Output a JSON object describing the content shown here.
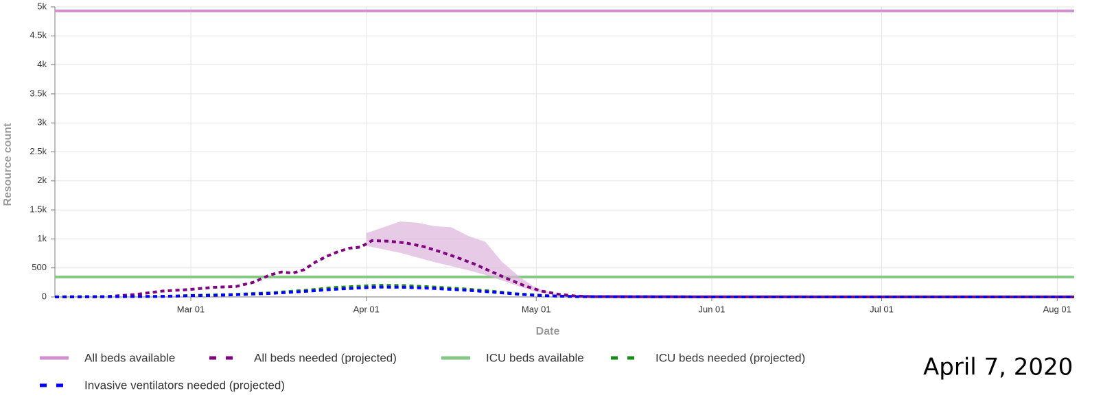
{
  "chart_data": {
    "type": "line",
    "xlabel": "Date",
    "ylabel": "Resource count",
    "annotation": "April 7, 2020",
    "xlim": [
      "02-06",
      "08-04"
    ],
    "xticks": [
      {
        "value": "03-01",
        "label": "Mar 01"
      },
      {
        "value": "04-01",
        "label": "Apr 01"
      },
      {
        "value": "05-01",
        "label": "May 01"
      },
      {
        "value": "06-01",
        "label": "Jun 01"
      },
      {
        "value": "07-01",
        "label": "Jul 01"
      },
      {
        "value": "08-01",
        "label": "Aug 01"
      }
    ],
    "ylim": [
      0,
      5000
    ],
    "yticks": [
      0,
      500,
      {
        "value": 1000,
        "label": "1k"
      },
      {
        "value": 1500,
        "label": "1.5k"
      },
      {
        "value": 2000,
        "label": "2k"
      },
      {
        "value": 2500,
        "label": "2.5k"
      },
      {
        "value": 3000,
        "label": "3k"
      },
      {
        "value": 3500,
        "label": "3.5k"
      },
      {
        "value": 4000,
        "label": "4k"
      },
      {
        "value": 4500,
        "label": "4.5k"
      },
      {
        "value": 5000,
        "label": "5k"
      }
    ],
    "grid": true,
    "legend": "bottom",
    "series": [
      {
        "name": "All beds available",
        "color": "#cf8fd0",
        "style": "solid",
        "x": [
          "02-06",
          "08-04"
        ],
        "values": [
          4930,
          4930
        ]
      },
      {
        "name": "All beds needed (projected)",
        "color": "#800080",
        "style": "dashed",
        "x": [
          "02-06",
          "02-15",
          "02-20",
          "02-25",
          "03-01",
          "03-05",
          "03-09",
          "03-12",
          "03-15",
          "03-17",
          "03-19",
          "03-21",
          "03-23",
          "03-25",
          "03-27",
          "03-29",
          "03-31",
          "04-02",
          "04-05",
          "04-08",
          "04-11",
          "04-14",
          "04-17",
          "04-20",
          "04-23",
          "04-26",
          "04-29",
          "05-02",
          "05-05",
          "05-08",
          "05-11",
          "06-01",
          "08-04"
        ],
        "values": [
          0,
          5,
          40,
          100,
          130,
          165,
          180,
          250,
          380,
          430,
          410,
          470,
          600,
          700,
          780,
          840,
          860,
          970,
          960,
          930,
          870,
          780,
          680,
          570,
          440,
          310,
          190,
          100,
          45,
          15,
          5,
          1,
          0
        ],
        "interval": {
          "color": "#dcb4dc",
          "x": [
            "04-01",
            "04-04",
            "04-07",
            "04-10",
            "04-13",
            "04-16",
            "04-19",
            "04-22",
            "04-25",
            "04-28",
            "05-01",
            "05-04",
            "05-08"
          ],
          "upper": [
            1100,
            1200,
            1300,
            1280,
            1220,
            1200,
            1050,
            950,
            600,
            350,
            150,
            60,
            15
          ],
          "lower": [
            880,
            820,
            760,
            680,
            600,
            530,
            460,
            380,
            280,
            180,
            90,
            40,
            10
          ]
        }
      },
      {
        "name": "ICU beds available",
        "color": "#86c786",
        "style": "solid",
        "x": [
          "02-06",
          "08-04"
        ],
        "values": [
          345,
          345
        ]
      },
      {
        "name": "ICU beds needed (projected)",
        "color": "#1a8a1a",
        "style": "dashed",
        "x": [
          "02-06",
          "02-25",
          "03-01",
          "03-08",
          "03-15",
          "03-22",
          "03-26",
          "03-30",
          "04-03",
          "04-08",
          "04-13",
          "04-18",
          "04-23",
          "04-28",
          "05-03",
          "05-08",
          "06-01",
          "08-04"
        ],
        "values": [
          0,
          10,
          25,
          40,
          70,
          120,
          160,
          180,
          200,
          195,
          170,
          140,
          100,
          50,
          20,
          5,
          0,
          0
        ]
      },
      {
        "name": "Invasive ventilators needed (projected)",
        "color": "#0000ff",
        "style": "dashed",
        "x": [
          "02-06",
          "02-25",
          "03-01",
          "03-08",
          "03-15",
          "03-22",
          "03-26",
          "03-30",
          "04-03",
          "04-08",
          "04-13",
          "04-18",
          "04-23",
          "04-28",
          "05-03",
          "05-08",
          "06-01",
          "08-04"
        ],
        "values": [
          0,
          8,
          20,
          35,
          60,
          100,
          130,
          150,
          170,
          165,
          145,
          120,
          85,
          45,
          18,
          5,
          0,
          0
        ]
      }
    ]
  }
}
